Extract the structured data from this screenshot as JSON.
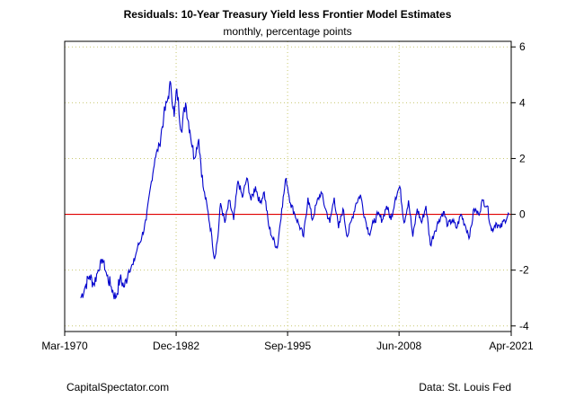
{
  "chart_data": {
    "type": "line",
    "title": "Residuals: 10-Year Treasury Yield less Frontier Model Estimates",
    "subtitle": "monthly, percentage points",
    "xlabel": "",
    "ylabel": "",
    "x_ticks": [
      "Mar-1970",
      "Dec-1982",
      "Sep-1995",
      "Jun-2008",
      "Apr-2021"
    ],
    "x_tick_years": [
      1970.17,
      1982.92,
      1995.67,
      2008.42,
      2021.25
    ],
    "xlim": [
      1970.17,
      2021.25
    ],
    "y_ticks": [
      -4,
      -2,
      0,
      2,
      4,
      6
    ],
    "ylim": [
      -4.2,
      6.2
    ],
    "y_axis_side": "right",
    "grid": true,
    "zero_line": {
      "value": 0,
      "color": "#e00000"
    },
    "series": [
      {
        "name": "Residuals",
        "color": "#0000cc",
        "points": [
          [
            1972.0,
            -3.0
          ],
          [
            1972.5,
            -2.6
          ],
          [
            1973.0,
            -2.2
          ],
          [
            1973.5,
            -2.5
          ],
          [
            1974.0,
            -2.0
          ],
          [
            1974.5,
            -1.6
          ],
          [
            1975.0,
            -2.2
          ],
          [
            1975.5,
            -2.6
          ],
          [
            1976.0,
            -3.0
          ],
          [
            1976.5,
            -2.3
          ],
          [
            1977.0,
            -2.6
          ],
          [
            1977.5,
            -2.0
          ],
          [
            1978.0,
            -1.8
          ],
          [
            1978.5,
            -1.2
          ],
          [
            1979.0,
            -0.8
          ],
          [
            1979.5,
            -0.2
          ],
          [
            1980.0,
            1.0
          ],
          [
            1980.5,
            2.0
          ],
          [
            1981.0,
            2.5
          ],
          [
            1981.5,
            3.5
          ],
          [
            1982.0,
            4.2
          ],
          [
            1982.3,
            4.7
          ],
          [
            1982.7,
            3.5
          ],
          [
            1983.0,
            4.5
          ],
          [
            1983.5,
            3.0
          ],
          [
            1984.0,
            4.0
          ],
          [
            1984.5,
            3.0
          ],
          [
            1985.0,
            2.0
          ],
          [
            1985.5,
            2.7
          ],
          [
            1986.0,
            1.0
          ],
          [
            1986.5,
            0.2
          ],
          [
            1987.0,
            -0.8
          ],
          [
            1987.3,
            -1.6
          ],
          [
            1987.7,
            -0.8
          ],
          [
            1988.0,
            0.4
          ],
          [
            1988.5,
            -0.3
          ],
          [
            1989.0,
            0.5
          ],
          [
            1989.5,
            -0.2
          ],
          [
            1990.0,
            1.2
          ],
          [
            1990.5,
            0.6
          ],
          [
            1991.0,
            1.3
          ],
          [
            1991.5,
            0.5
          ],
          [
            1992.0,
            1.0
          ],
          [
            1992.5,
            0.4
          ],
          [
            1993.0,
            0.8
          ],
          [
            1993.5,
            -0.4
          ],
          [
            1994.0,
            -0.9
          ],
          [
            1994.5,
            -1.2
          ],
          [
            1995.0,
            0.2
          ],
          [
            1995.5,
            1.3
          ],
          [
            1996.0,
            0.4
          ],
          [
            1996.5,
            0.0
          ],
          [
            1997.0,
            -0.4
          ],
          [
            1997.5,
            -0.8
          ],
          [
            1998.0,
            0.6
          ],
          [
            1998.5,
            -0.2
          ],
          [
            1999.0,
            0.4
          ],
          [
            1999.5,
            0.8
          ],
          [
            2000.0,
            0.2
          ],
          [
            2000.5,
            -0.3
          ],
          [
            2001.0,
            0.6
          ],
          [
            2001.5,
            -0.5
          ],
          [
            2002.0,
            0.2
          ],
          [
            2002.5,
            -0.8
          ],
          [
            2003.0,
            -0.2
          ],
          [
            2003.5,
            0.4
          ],
          [
            2004.0,
            0.7
          ],
          [
            2004.5,
            -0.1
          ],
          [
            2005.0,
            -0.7
          ],
          [
            2005.5,
            -0.3
          ],
          [
            2006.0,
            0.0
          ],
          [
            2006.5,
            -0.2
          ],
          [
            2007.0,
            0.3
          ],
          [
            2007.5,
            -0.2
          ],
          [
            2008.0,
            0.6
          ],
          [
            2008.5,
            1.0
          ],
          [
            2009.0,
            -0.3
          ],
          [
            2009.5,
            0.5
          ],
          [
            2010.0,
            -0.8
          ],
          [
            2010.5,
            0.2
          ],
          [
            2011.0,
            -0.3
          ],
          [
            2011.5,
            0.3
          ],
          [
            2012.0,
            -1.1
          ],
          [
            2012.5,
            -0.6
          ],
          [
            2013.0,
            -0.2
          ],
          [
            2013.5,
            0.1
          ],
          [
            2014.0,
            -0.4
          ],
          [
            2014.5,
            -0.2
          ],
          [
            2015.0,
            -0.5
          ],
          [
            2015.5,
            0.0
          ],
          [
            2016.0,
            -0.4
          ],
          [
            2016.5,
            -0.8
          ],
          [
            2017.0,
            0.2
          ],
          [
            2017.5,
            0.0
          ],
          [
            2018.0,
            0.5
          ],
          [
            2018.5,
            0.3
          ],
          [
            2019.0,
            -0.6
          ],
          [
            2019.5,
            -0.3
          ],
          [
            2020.0,
            -0.5
          ],
          [
            2020.5,
            -0.2
          ],
          [
            2021.0,
            0.0
          ]
        ]
      }
    ]
  },
  "footer": {
    "left": "CapitalSpectator.com",
    "right": "Data: St. Louis Fed"
  }
}
